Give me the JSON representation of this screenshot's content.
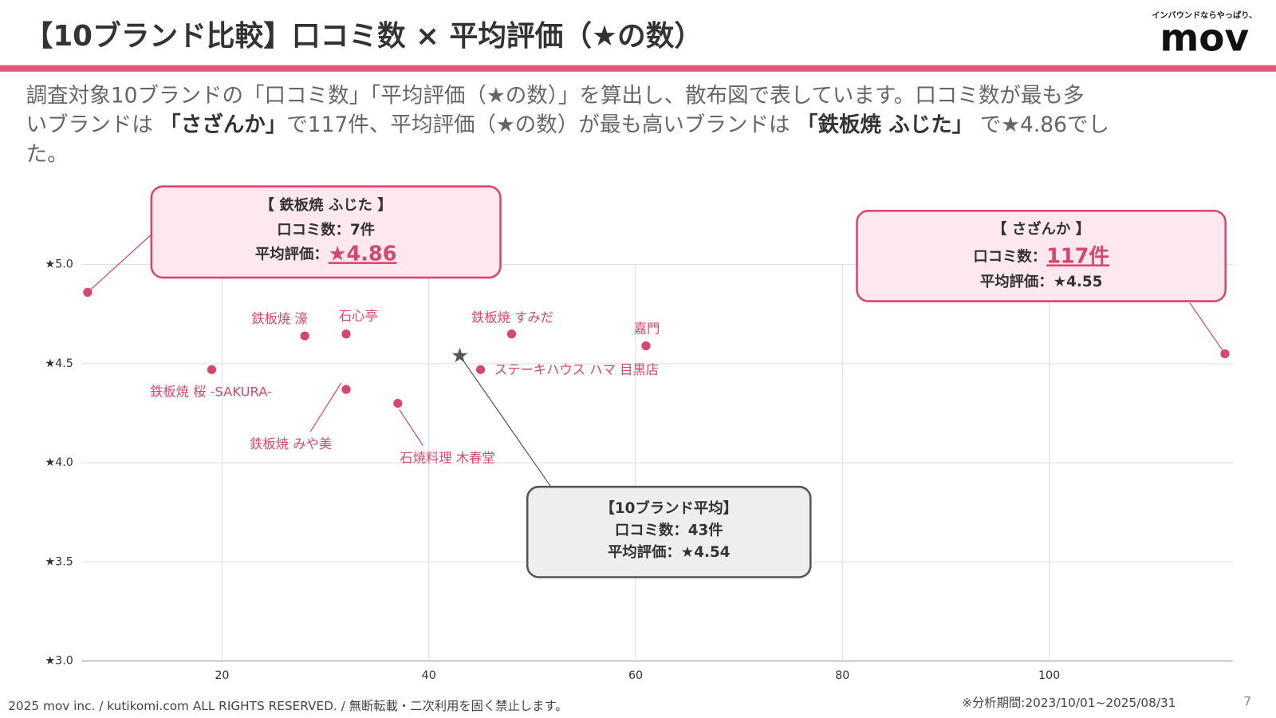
{
  "header": {
    "title": "【10ブランド比較】口コミ数 × 平均評価（★の数）",
    "logo_tagline": "インバウンドならやっぱり、",
    "logo": "mov"
  },
  "description": {
    "lines": [
      [
        {
          "text": "調査対象10ブランドの「口コミ数」「平均評価（★の数）」を算出し、散布図で表しています。口コミ数が最も多",
          "bold": false
        }
      ],
      [
        {
          "text": "いブランドは ",
          "bold": false
        },
        {
          "text": "「さざんか」",
          "bold": true
        },
        {
          "text": "で117件、平均評価（★の数）が最も高いブランドは ",
          "bold": false
        },
        {
          "text": "「鉄板焼 ふじた」",
          "bold": true
        },
        {
          "text": " で★4.86でし",
          "bold": false
        }
      ],
      [
        {
          "text": "た。",
          "bold": false
        }
      ]
    ]
  },
  "chart_data": {
    "type": "scatter",
    "color": "#d9466c",
    "grid": true,
    "xlim": [
      6,
      118
    ],
    "xticks": [
      20,
      40,
      60,
      80,
      100
    ],
    "ylim": [
      3,
      5
    ],
    "yticks": [
      {
        "value": 3,
        "label": "★3.0"
      },
      {
        "value": 3.5,
        "label": "★3.5"
      },
      {
        "value": 4,
        "label": "★4.0"
      },
      {
        "value": 4.5,
        "label": "★4.5"
      },
      {
        "value": 5,
        "label": "★5.0"
      }
    ],
    "point_labels": [
      null,
      null,
      "鉄板焼 桜 -SAKURA-",
      "鉄板焼 濠",
      "石心亭",
      "鉄板焼 みや美",
      "石焼料理 木春堂",
      "鉄板焼 すみだ",
      "ステーキハウス ハマ 目黒店",
      "嘉門"
    ],
    "x": [
      7,
      117,
      19,
      28,
      32,
      32,
      37,
      48,
      45,
      61
    ],
    "values": [
      4.86,
      4.55,
      4.47,
      4.64,
      4.65,
      4.37,
      4.3,
      4.65,
      4.47,
      4.59
    ],
    "average": {
      "x": 43,
      "value": 4.54,
      "color": "#555555"
    },
    "annotations": [
      {
        "lines": [
          [
            {
              "text": "【 鉄板焼 ふじた 】",
              "emphasis": false
            }
          ],
          [
            {
              "text": "口コミ数：7件",
              "emphasis": false
            }
          ],
          [
            {
              "text": "平均評価：",
              "emphasis": false
            },
            {
              "text": "★4.86",
              "emphasis": true
            }
          ]
        ]
      },
      {
        "lines": [
          [
            {
              "text": "【 さざんか 】",
              "emphasis": false
            }
          ],
          [
            {
              "text": "口コミ数：",
              "emphasis": false
            },
            {
              "text": "117件",
              "emphasis": true
            }
          ],
          [
            {
              "text": "平均評価：★4.55",
              "emphasis": false
            }
          ]
        ]
      },
      {
        "lines": [
          [
            {
              "text": "【10ブランド平均】",
              "emphasis": false
            }
          ],
          [
            {
              "text": "口コミ数：43件",
              "emphasis": false
            }
          ],
          [
            {
              "text": "平均評価：★4.54",
              "emphasis": false
            }
          ]
        ]
      }
    ]
  },
  "footer": {
    "copyright": "2025 mov inc. / kutikomi.com ALL RIGHTS RESERVED. / 無断転載・二次利用を固く禁止します。",
    "period": "※分析期間:2023/10/01~2025/08/31",
    "page": "7"
  }
}
